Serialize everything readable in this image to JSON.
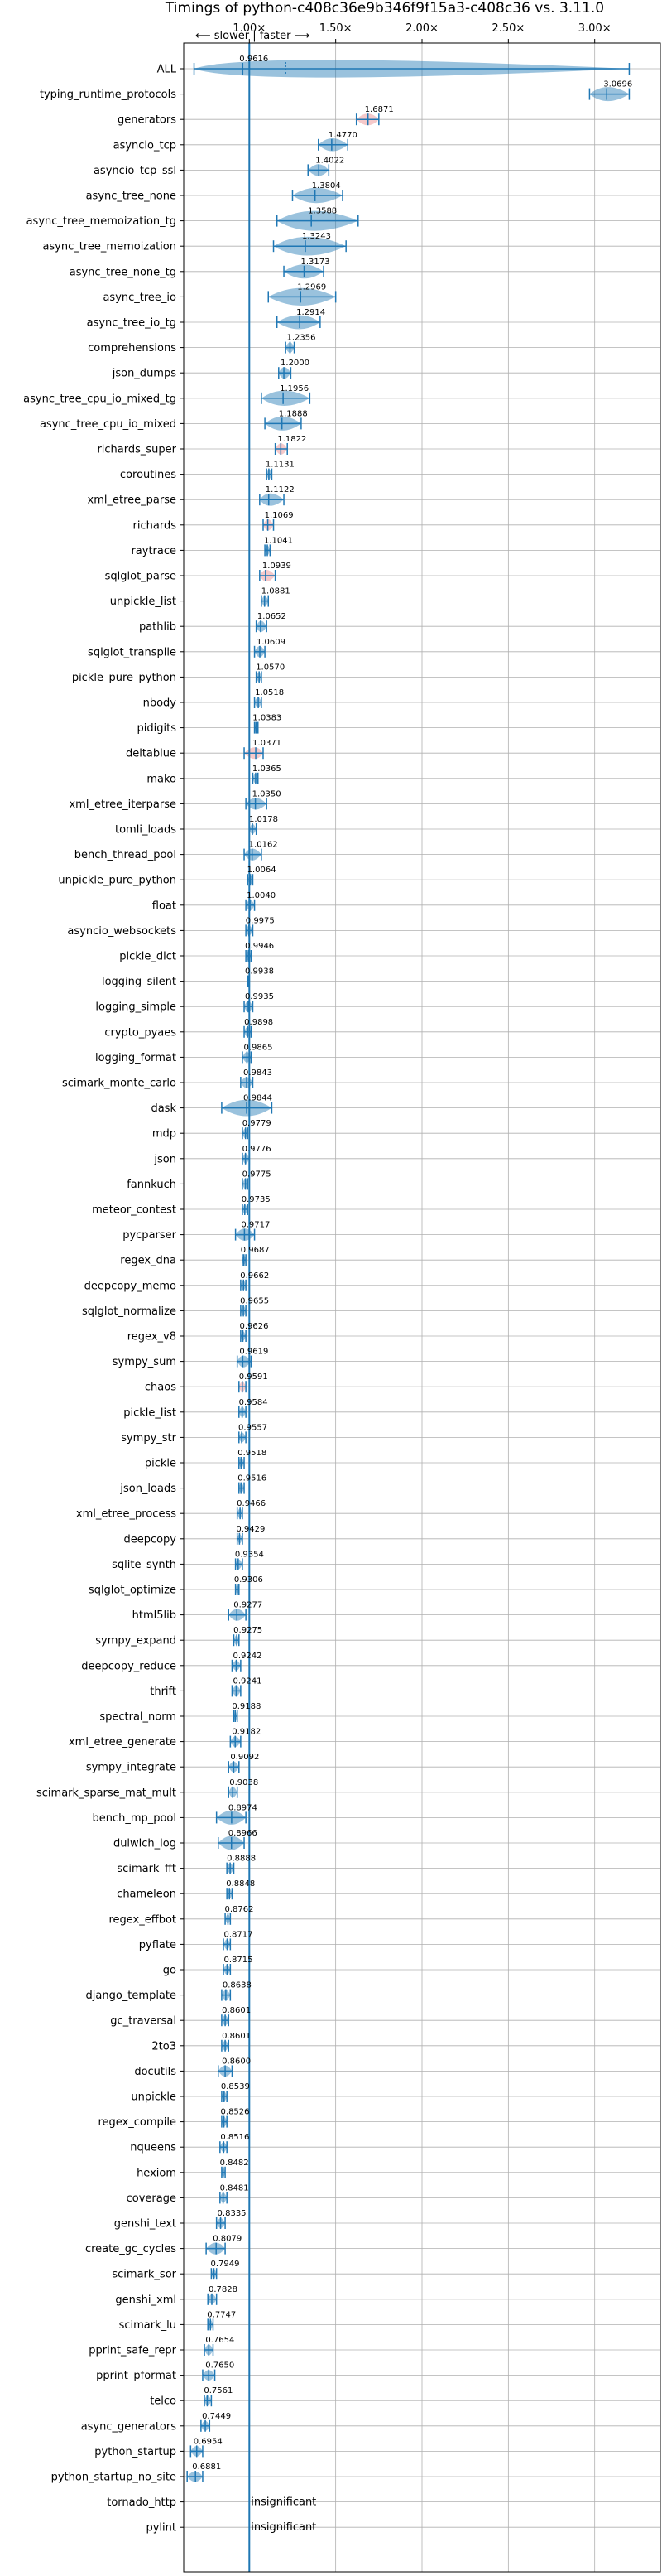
{
  "chart_data": {
    "type": "violin",
    "title": "Timings of python-c408c36e9b346f9f15a3-c408c36 vs. 3.11.0",
    "direction_label": "⟵ slower | faster ⟶",
    "xlim": [
      0.62,
      3.38
    ],
    "x_ticks": [
      {
        "value": 1.0,
        "label": "1.00×"
      },
      {
        "value": 1.5,
        "label": "1.50×"
      },
      {
        "value": 2.0,
        "label": "2.00×"
      },
      {
        "value": 2.5,
        "label": "2.50×"
      },
      {
        "value": 3.0,
        "label": "3.00×"
      }
    ],
    "baseline": 1.0,
    "grid": true,
    "colors": {
      "violin": "#1f77b4",
      "highlight": "#e8888a",
      "baseline": "#1f77b4"
    },
    "insignificant_label": "insignificant",
    "benchmarks": [
      {
        "name": "ALL",
        "value": 0.9616,
        "min": 0.68,
        "max": 3.2,
        "spread": 0.08
      },
      {
        "name": "typing_runtime_protocols",
        "value": 3.0696,
        "min": 2.97,
        "max": 3.2,
        "spread": 0.05
      },
      {
        "name": "generators",
        "value": 1.6871,
        "min": 1.62,
        "max": 1.75,
        "spread": 0.03,
        "highlight": true
      },
      {
        "name": "asyncio_tcp",
        "value": 1.477,
        "min": 1.4,
        "max": 1.57,
        "spread": 0.04
      },
      {
        "name": "asyncio_tcp_ssl",
        "value": 1.4022,
        "min": 1.34,
        "max": 1.46,
        "spread": 0.03
      },
      {
        "name": "async_tree_none",
        "value": 1.3804,
        "min": 1.25,
        "max": 1.54,
        "spread": 0.06
      },
      {
        "name": "async_tree_memoization_tg",
        "value": 1.3588,
        "min": 1.16,
        "max": 1.63,
        "spread": 0.1
      },
      {
        "name": "async_tree_memoization",
        "value": 1.3243,
        "min": 1.14,
        "max": 1.56,
        "spread": 0.09
      },
      {
        "name": "async_tree_none_tg",
        "value": 1.3173,
        "min": 1.2,
        "max": 1.43,
        "spread": 0.05
      },
      {
        "name": "async_tree_io",
        "value": 1.2969,
        "min": 1.11,
        "max": 1.5,
        "spread": 0.08
      },
      {
        "name": "async_tree_io_tg",
        "value": 1.2914,
        "min": 1.16,
        "max": 1.41,
        "spread": 0.05
      },
      {
        "name": "comprehensions",
        "value": 1.2356,
        "min": 1.21,
        "max": 1.26,
        "spread": 0.02
      },
      {
        "name": "json_dumps",
        "value": 1.2,
        "min": 1.17,
        "max": 1.24,
        "spread": 0.03
      },
      {
        "name": "async_tree_cpu_io_mixed_tg",
        "value": 1.1956,
        "min": 1.07,
        "max": 1.35,
        "spread": 0.06
      },
      {
        "name": "async_tree_cpu_io_mixed",
        "value": 1.1888,
        "min": 1.09,
        "max": 1.3,
        "spread": 0.05
      },
      {
        "name": "richards_super",
        "value": 1.1822,
        "min": 1.15,
        "max": 1.22,
        "spread": 0.025,
        "highlight": true
      },
      {
        "name": "coroutines",
        "value": 1.1131,
        "min": 1.1,
        "max": 1.13,
        "spread": 0.015
      },
      {
        "name": "xml_etree_parse",
        "value": 1.1122,
        "min": 1.06,
        "max": 1.2,
        "spread": 0.035
      },
      {
        "name": "richards",
        "value": 1.1069,
        "min": 1.08,
        "max": 1.14,
        "spread": 0.025,
        "highlight": true
      },
      {
        "name": "raytrace",
        "value": 1.1041,
        "min": 1.09,
        "max": 1.12,
        "spread": 0.015
      },
      {
        "name": "sqlglot_parse",
        "value": 1.0939,
        "min": 1.06,
        "max": 1.15,
        "spread": 0.03,
        "highlight": true
      },
      {
        "name": "unpickle_list",
        "value": 1.0881,
        "min": 1.07,
        "max": 1.11,
        "spread": 0.02
      },
      {
        "name": "pathlib",
        "value": 1.0652,
        "min": 1.04,
        "max": 1.1,
        "spread": 0.025
      },
      {
        "name": "sqlglot_transpile",
        "value": 1.0609,
        "min": 1.03,
        "max": 1.09,
        "spread": 0.025
      },
      {
        "name": "pickle_pure_python",
        "value": 1.057,
        "min": 1.04,
        "max": 1.07,
        "spread": 0.015
      },
      {
        "name": "nbody",
        "value": 1.0518,
        "min": 1.03,
        "max": 1.07,
        "spread": 0.02
      },
      {
        "name": "pidigits",
        "value": 1.0383,
        "min": 1.03,
        "max": 1.05,
        "spread": 0.01
      },
      {
        "name": "deltablue",
        "value": 1.0371,
        "min": 0.97,
        "max": 1.08,
        "spread": 0.03,
        "highlight": true
      },
      {
        "name": "mako",
        "value": 1.0365,
        "min": 1.02,
        "max": 1.05,
        "spread": 0.015
      },
      {
        "name": "xml_etree_iterparse",
        "value": 1.035,
        "min": 0.98,
        "max": 1.1,
        "spread": 0.03
      },
      {
        "name": "tomli_loads",
        "value": 1.0178,
        "min": 1.0,
        "max": 1.04,
        "spread": 0.015
      },
      {
        "name": "bench_thread_pool",
        "value": 1.0162,
        "min": 0.97,
        "max": 1.07,
        "spread": 0.03
      },
      {
        "name": "unpickle_pure_python",
        "value": 1.0064,
        "min": 0.99,
        "max": 1.02,
        "spread": 0.01
      },
      {
        "name": "float",
        "value": 1.004,
        "min": 0.98,
        "max": 1.03,
        "spread": 0.02
      },
      {
        "name": "asyncio_websockets",
        "value": 0.9975,
        "min": 0.98,
        "max": 1.02,
        "spread": 0.015
      },
      {
        "name": "pickle_dict",
        "value": 0.9946,
        "min": 0.98,
        "max": 1.01,
        "spread": 0.015
      },
      {
        "name": "logging_silent",
        "value": 0.9938,
        "min": 0.99,
        "max": 1.0,
        "spread": 0.01
      },
      {
        "name": "logging_simple",
        "value": 0.9935,
        "min": 0.97,
        "max": 1.02,
        "spread": 0.02
      },
      {
        "name": "crypto_pyaes",
        "value": 0.9898,
        "min": 0.97,
        "max": 1.01,
        "spread": 0.015
      },
      {
        "name": "logging_format",
        "value": 0.9865,
        "min": 0.96,
        "max": 1.01,
        "spread": 0.02
      },
      {
        "name": "scimark_monte_carlo",
        "value": 0.9843,
        "min": 0.95,
        "max": 1.02,
        "spread": 0.025
      },
      {
        "name": "dask",
        "value": 0.9844,
        "min": 0.84,
        "max": 1.13,
        "spread": 0.07
      },
      {
        "name": "mdp",
        "value": 0.9779,
        "min": 0.96,
        "max": 0.99,
        "spread": 0.015
      },
      {
        "name": "json",
        "value": 0.9776,
        "min": 0.96,
        "max": 1.0,
        "spread": 0.015
      },
      {
        "name": "fannkuch",
        "value": 0.9775,
        "min": 0.96,
        "max": 0.99,
        "spread": 0.015
      },
      {
        "name": "meteor_contest",
        "value": 0.9735,
        "min": 0.96,
        "max": 0.99,
        "spread": 0.01
      },
      {
        "name": "pycparser",
        "value": 0.9717,
        "min": 0.92,
        "max": 1.03,
        "spread": 0.035
      },
      {
        "name": "regex_dna",
        "value": 0.9687,
        "min": 0.96,
        "max": 0.98,
        "spread": 0.01
      },
      {
        "name": "deepcopy_memo",
        "value": 0.9662,
        "min": 0.95,
        "max": 0.98,
        "spread": 0.015
      },
      {
        "name": "sqlglot_normalize",
        "value": 0.9655,
        "min": 0.95,
        "max": 0.98,
        "spread": 0.015
      },
      {
        "name": "regex_v8",
        "value": 0.9626,
        "min": 0.95,
        "max": 0.98,
        "spread": 0.01
      },
      {
        "name": "sympy_sum",
        "value": 0.9619,
        "min": 0.93,
        "max": 1.01,
        "spread": 0.03
      },
      {
        "name": "chaos",
        "value": 0.9591,
        "min": 0.94,
        "max": 0.98,
        "spread": 0.015,
        "highlight": true
      },
      {
        "name": "pickle_list",
        "value": 0.9584,
        "min": 0.94,
        "max": 0.98,
        "spread": 0.015
      },
      {
        "name": "sympy_str",
        "value": 0.9557,
        "min": 0.94,
        "max": 0.98,
        "spread": 0.015
      },
      {
        "name": "pickle",
        "value": 0.9518,
        "min": 0.94,
        "max": 0.97,
        "spread": 0.015
      },
      {
        "name": "json_loads",
        "value": 0.9516,
        "min": 0.94,
        "max": 0.97,
        "spread": 0.015
      },
      {
        "name": "xml_etree_process",
        "value": 0.9466,
        "min": 0.93,
        "max": 0.96,
        "spread": 0.015
      },
      {
        "name": "deepcopy",
        "value": 0.9429,
        "min": 0.93,
        "max": 0.96,
        "spread": 0.01
      },
      {
        "name": "sqlite_synth",
        "value": 0.9354,
        "min": 0.92,
        "max": 0.96,
        "spread": 0.015
      },
      {
        "name": "sqlglot_optimize",
        "value": 0.9306,
        "min": 0.92,
        "max": 0.94,
        "spread": 0.01
      },
      {
        "name": "html5lib",
        "value": 0.9277,
        "min": 0.88,
        "max": 0.98,
        "spread": 0.03
      },
      {
        "name": "sympy_expand",
        "value": 0.9275,
        "min": 0.91,
        "max": 0.94,
        "spread": 0.015
      },
      {
        "name": "deepcopy_reduce",
        "value": 0.9242,
        "min": 0.9,
        "max": 0.95,
        "spread": 0.015
      },
      {
        "name": "thrift",
        "value": 0.9241,
        "min": 0.9,
        "max": 0.95,
        "spread": 0.015
      },
      {
        "name": "spectral_norm",
        "value": 0.9188,
        "min": 0.91,
        "max": 0.93,
        "spread": 0.01
      },
      {
        "name": "xml_etree_generate",
        "value": 0.9182,
        "min": 0.89,
        "max": 0.95,
        "spread": 0.02
      },
      {
        "name": "sympy_integrate",
        "value": 0.9092,
        "min": 0.88,
        "max": 0.94,
        "spread": 0.02
      },
      {
        "name": "scimark_sparse_mat_mult",
        "value": 0.9038,
        "min": 0.88,
        "max": 0.93,
        "spread": 0.02
      },
      {
        "name": "bench_mp_pool",
        "value": 0.8974,
        "min": 0.81,
        "max": 0.98,
        "spread": 0.05
      },
      {
        "name": "dulwich_log",
        "value": 0.8966,
        "min": 0.82,
        "max": 0.97,
        "spread": 0.05
      },
      {
        "name": "scimark_fft",
        "value": 0.8888,
        "min": 0.87,
        "max": 0.91,
        "spread": 0.015
      },
      {
        "name": "chameleon",
        "value": 0.8848,
        "min": 0.87,
        "max": 0.9,
        "spread": 0.015
      },
      {
        "name": "regex_effbot",
        "value": 0.8762,
        "min": 0.86,
        "max": 0.89,
        "spread": 0.01
      },
      {
        "name": "pyflate",
        "value": 0.8717,
        "min": 0.85,
        "max": 0.89,
        "spread": 0.015
      },
      {
        "name": "go",
        "value": 0.8715,
        "min": 0.85,
        "max": 0.89,
        "spread": 0.015
      },
      {
        "name": "django_template",
        "value": 0.8638,
        "min": 0.84,
        "max": 0.89,
        "spread": 0.015
      },
      {
        "name": "gc_traversal",
        "value": 0.8601,
        "min": 0.84,
        "max": 0.88,
        "spread": 0.015
      },
      {
        "name": "2to3",
        "value": 0.8601,
        "min": 0.84,
        "max": 0.88,
        "spread": 0.015
      },
      {
        "name": "docutils",
        "value": 0.86,
        "min": 0.82,
        "max": 0.9,
        "spread": 0.025
      },
      {
        "name": "unpickle",
        "value": 0.8539,
        "min": 0.84,
        "max": 0.87,
        "spread": 0.01
      },
      {
        "name": "regex_compile",
        "value": 0.8526,
        "min": 0.84,
        "max": 0.87,
        "spread": 0.015
      },
      {
        "name": "nqueens",
        "value": 0.8516,
        "min": 0.83,
        "max": 0.87,
        "spread": 0.015
      },
      {
        "name": "hexiom",
        "value": 0.8482,
        "min": 0.84,
        "max": 0.86,
        "spread": 0.01
      },
      {
        "name": "coverage",
        "value": 0.8481,
        "min": 0.83,
        "max": 0.87,
        "spread": 0.015
      },
      {
        "name": "genshi_text",
        "value": 0.8335,
        "min": 0.81,
        "max": 0.86,
        "spread": 0.015
      },
      {
        "name": "create_gc_cycles",
        "value": 0.8079,
        "min": 0.75,
        "max": 0.86,
        "spread": 0.03
      },
      {
        "name": "scimark_sor",
        "value": 0.7949,
        "min": 0.78,
        "max": 0.81,
        "spread": 0.01
      },
      {
        "name": "genshi_xml",
        "value": 0.7828,
        "min": 0.76,
        "max": 0.81,
        "spread": 0.015
      },
      {
        "name": "scimark_lu",
        "value": 0.7747,
        "min": 0.76,
        "max": 0.79,
        "spread": 0.01
      },
      {
        "name": "pprint_safe_repr",
        "value": 0.7654,
        "min": 0.74,
        "max": 0.79,
        "spread": 0.02
      },
      {
        "name": "pprint_pformat",
        "value": 0.765,
        "min": 0.73,
        "max": 0.8,
        "spread": 0.02
      },
      {
        "name": "telco",
        "value": 0.7561,
        "min": 0.74,
        "max": 0.78,
        "spread": 0.015
      },
      {
        "name": "async_generators",
        "value": 0.7449,
        "min": 0.72,
        "max": 0.77,
        "spread": 0.015
      },
      {
        "name": "python_startup",
        "value": 0.6954,
        "min": 0.66,
        "max": 0.73,
        "spread": 0.02
      },
      {
        "name": "python_startup_no_site",
        "value": 0.6881,
        "min": 0.64,
        "max": 0.73,
        "spread": 0.02
      },
      {
        "name": "tornado_http",
        "value": null,
        "insignificant": true
      },
      {
        "name": "pylint",
        "value": null,
        "insignificant": true
      }
    ]
  }
}
